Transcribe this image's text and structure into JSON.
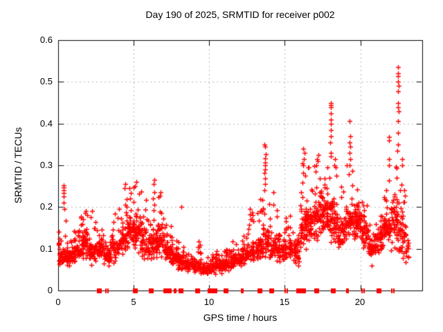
{
  "window": {
    "background": "#ffffff"
  },
  "chart_data": {
    "type": "scatter",
    "title": "Day 190 of 2025, SRMTID for receiver p002",
    "xlabel": "GPS time / hours",
    "ylabel": "SRMTID / TECUs",
    "xlim": [
      0,
      24.1
    ],
    "ylim": [
      0,
      0.6
    ],
    "xticks": [
      0,
      5,
      10,
      15,
      20
    ],
    "yticks": [
      0,
      0.1,
      0.2,
      0.3,
      0.4,
      0.5,
      0.6
    ],
    "xtick_labels": [
      "0",
      "5",
      "10",
      "15",
      "20"
    ],
    "ytick_labels": [
      "0",
      "0.1",
      "0.2",
      "0.3",
      "0.4",
      "0.5",
      "0.6"
    ],
    "grid": true,
    "grid_style": "dashed",
    "legend": "none",
    "marker": "plus",
    "marker_color": "#ff0000",
    "grid_color": "#b4b4b4",
    "border_color": "#000000",
    "seed": 190,
    "density_bins": [
      [
        0.0,
        0.5,
        0.05,
        0.18,
        0.08,
        48
      ],
      [
        0.5,
        1.0,
        0.05,
        0.14,
        0.08,
        50
      ],
      [
        1.0,
        1.5,
        0.06,
        0.16,
        0.09,
        50
      ],
      [
        1.5,
        2.0,
        0.06,
        0.19,
        0.11,
        52
      ],
      [
        2.0,
        2.5,
        0.05,
        0.2,
        0.09,
        48
      ],
      [
        2.5,
        3.0,
        0.06,
        0.16,
        0.1,
        45
      ],
      [
        3.0,
        3.5,
        0.05,
        0.13,
        0.08,
        45
      ],
      [
        3.5,
        4.0,
        0.05,
        0.21,
        0.1,
        45
      ],
      [
        4.0,
        4.5,
        0.07,
        0.22,
        0.12,
        50
      ],
      [
        4.5,
        5.0,
        0.08,
        0.26,
        0.15,
        55
      ],
      [
        5.0,
        5.5,
        0.08,
        0.26,
        0.14,
        55
      ],
      [
        5.5,
        6.0,
        0.05,
        0.23,
        0.11,
        50
      ],
      [
        6.0,
        6.5,
        0.05,
        0.24,
        0.11,
        50
      ],
      [
        6.5,
        7.0,
        0.06,
        0.23,
        0.12,
        50
      ],
      [
        7.0,
        7.5,
        0.05,
        0.16,
        0.09,
        50
      ],
      [
        7.5,
        8.0,
        0.04,
        0.14,
        0.08,
        48
      ],
      [
        8.0,
        8.5,
        0.035,
        0.11,
        0.065,
        45
      ],
      [
        8.5,
        9.0,
        0.035,
        0.09,
        0.06,
        45
      ],
      [
        9.0,
        9.5,
        0.03,
        0.12,
        0.06,
        45
      ],
      [
        9.5,
        10.0,
        0.03,
        0.09,
        0.05,
        45
      ],
      [
        10.0,
        10.5,
        0.03,
        0.09,
        0.055,
        45
      ],
      [
        10.5,
        11.0,
        0.035,
        0.1,
        0.06,
        45
      ],
      [
        11.0,
        11.5,
        0.04,
        0.1,
        0.065,
        45
      ],
      [
        11.5,
        12.0,
        0.04,
        0.12,
        0.07,
        45
      ],
      [
        12.0,
        12.5,
        0.05,
        0.14,
        0.08,
        45
      ],
      [
        12.5,
        13.0,
        0.05,
        0.2,
        0.09,
        45
      ],
      [
        13.0,
        13.5,
        0.05,
        0.23,
        0.1,
        45
      ],
      [
        13.5,
        14.0,
        0.06,
        0.22,
        0.11,
        45
      ],
      [
        14.0,
        14.5,
        0.05,
        0.21,
        0.1,
        45
      ],
      [
        14.5,
        15.0,
        0.05,
        0.16,
        0.1,
        42
      ],
      [
        15.0,
        15.5,
        0.06,
        0.18,
        0.1,
        45
      ],
      [
        15.5,
        16.0,
        0.05,
        0.15,
        0.09,
        42
      ],
      [
        16.0,
        16.5,
        0.08,
        0.32,
        0.15,
        60
      ],
      [
        16.5,
        17.0,
        0.09,
        0.3,
        0.16,
        55
      ],
      [
        17.0,
        17.5,
        0.08,
        0.33,
        0.17,
        55
      ],
      [
        17.5,
        18.0,
        0.1,
        0.3,
        0.18,
        55
      ],
      [
        18.0,
        18.5,
        0.08,
        0.33,
        0.16,
        55
      ],
      [
        18.5,
        19.0,
        0.08,
        0.25,
        0.14,
        50
      ],
      [
        19.0,
        19.5,
        0.1,
        0.3,
        0.16,
        50
      ],
      [
        19.5,
        20.0,
        0.1,
        0.25,
        0.16,
        50
      ],
      [
        20.0,
        20.5,
        0.08,
        0.22,
        0.14,
        50
      ],
      [
        20.5,
        21.0,
        0.04,
        0.16,
        0.1,
        50
      ],
      [
        21.0,
        21.5,
        0.07,
        0.18,
        0.12,
        50
      ],
      [
        21.5,
        22.0,
        0.1,
        0.3,
        0.15,
        50
      ],
      [
        22.0,
        22.5,
        0.05,
        0.33,
        0.16,
        52
      ],
      [
        22.5,
        23.0,
        0.05,
        0.28,
        0.13,
        45
      ],
      [
        23.0,
        23.2,
        0.05,
        0.15,
        0.09,
        15
      ]
    ],
    "outlier_points": [
      [
        0.36,
        0.225
      ],
      [
        0.37,
        0.233
      ],
      [
        0.38,
        0.241
      ],
      [
        0.36,
        0.247
      ],
      [
        0.375,
        0.252
      ],
      [
        0.37,
        0.21
      ],
      [
        0.4,
        0.195
      ],
      [
        1.8,
        0.185
      ],
      [
        1.85,
        0.19
      ],
      [
        4.4,
        0.245
      ],
      [
        4.45,
        0.255
      ],
      [
        5.1,
        0.25
      ],
      [
        5.2,
        0.26
      ],
      [
        6.3,
        0.255
      ],
      [
        6.35,
        0.265
      ],
      [
        6.8,
        0.235
      ],
      [
        8.15,
        0.2
      ],
      [
        13.65,
        0.24
      ],
      [
        13.68,
        0.255
      ],
      [
        13.7,
        0.268
      ],
      [
        13.66,
        0.282
      ],
      [
        13.7,
        0.29
      ],
      [
        13.72,
        0.3
      ],
      [
        13.68,
        0.306
      ],
      [
        13.7,
        0.316
      ],
      [
        13.73,
        0.326
      ],
      [
        13.7,
        0.345
      ],
      [
        13.67,
        0.35
      ],
      [
        14.25,
        0.235
      ],
      [
        16.2,
        0.3
      ],
      [
        16.25,
        0.315
      ],
      [
        16.3,
        0.33
      ],
      [
        16.22,
        0.34
      ],
      [
        16.6,
        0.295
      ],
      [
        17.1,
        0.3
      ],
      [
        17.2,
        0.31
      ],
      [
        17.25,
        0.325
      ],
      [
        18.02,
        0.355
      ],
      [
        18.05,
        0.37
      ],
      [
        18.03,
        0.385
      ],
      [
        18.06,
        0.4
      ],
      [
        18.04,
        0.41
      ],
      [
        18.05,
        0.425
      ],
      [
        18.03,
        0.44
      ],
      [
        18.06,
        0.445
      ],
      [
        18.04,
        0.45
      ],
      [
        18.3,
        0.3
      ],
      [
        18.32,
        0.315
      ],
      [
        19.3,
        0.3
      ],
      [
        19.32,
        0.315
      ],
      [
        19.3,
        0.33
      ],
      [
        19.34,
        0.345
      ],
      [
        19.31,
        0.355
      ],
      [
        19.33,
        0.37
      ],
      [
        19.3,
        0.406
      ],
      [
        21.9,
        0.3
      ],
      [
        21.92,
        0.315
      ],
      [
        21.88,
        0.36
      ],
      [
        21.9,
        0.368
      ],
      [
        22.45,
        0.335
      ],
      [
        22.5,
        0.35
      ],
      [
        22.48,
        0.378
      ],
      [
        22.5,
        0.406
      ],
      [
        22.52,
        0.43
      ],
      [
        22.5,
        0.44
      ],
      [
        22.48,
        0.45
      ],
      [
        22.5,
        0.478
      ],
      [
        22.52,
        0.49
      ],
      [
        22.5,
        0.5
      ],
      [
        22.49,
        0.514
      ],
      [
        22.51,
        0.52
      ],
      [
        22.5,
        0.535
      ],
      [
        22.75,
        0.3
      ],
      [
        22.78,
        0.315
      ]
    ],
    "baseline_markers": {
      "squares": [
        2.72,
        5.1,
        6.12,
        7.1,
        7.22,
        8.1,
        9.2,
        10.02,
        10.15,
        11.1,
        13.33,
        14.1,
        16.1,
        16.22,
        17.1,
        18.2,
        21.2
      ],
      "tick_pairs": [
        3.18,
        3.3,
        7.35,
        7.45,
        7.72,
        7.8,
        10.4,
        10.48,
        12.15,
        12.25,
        15.05,
        15.15,
        15.8,
        15.9,
        19.1,
        19.2,
        20.1,
        20.25,
        22.1,
        22.2
      ]
    }
  }
}
